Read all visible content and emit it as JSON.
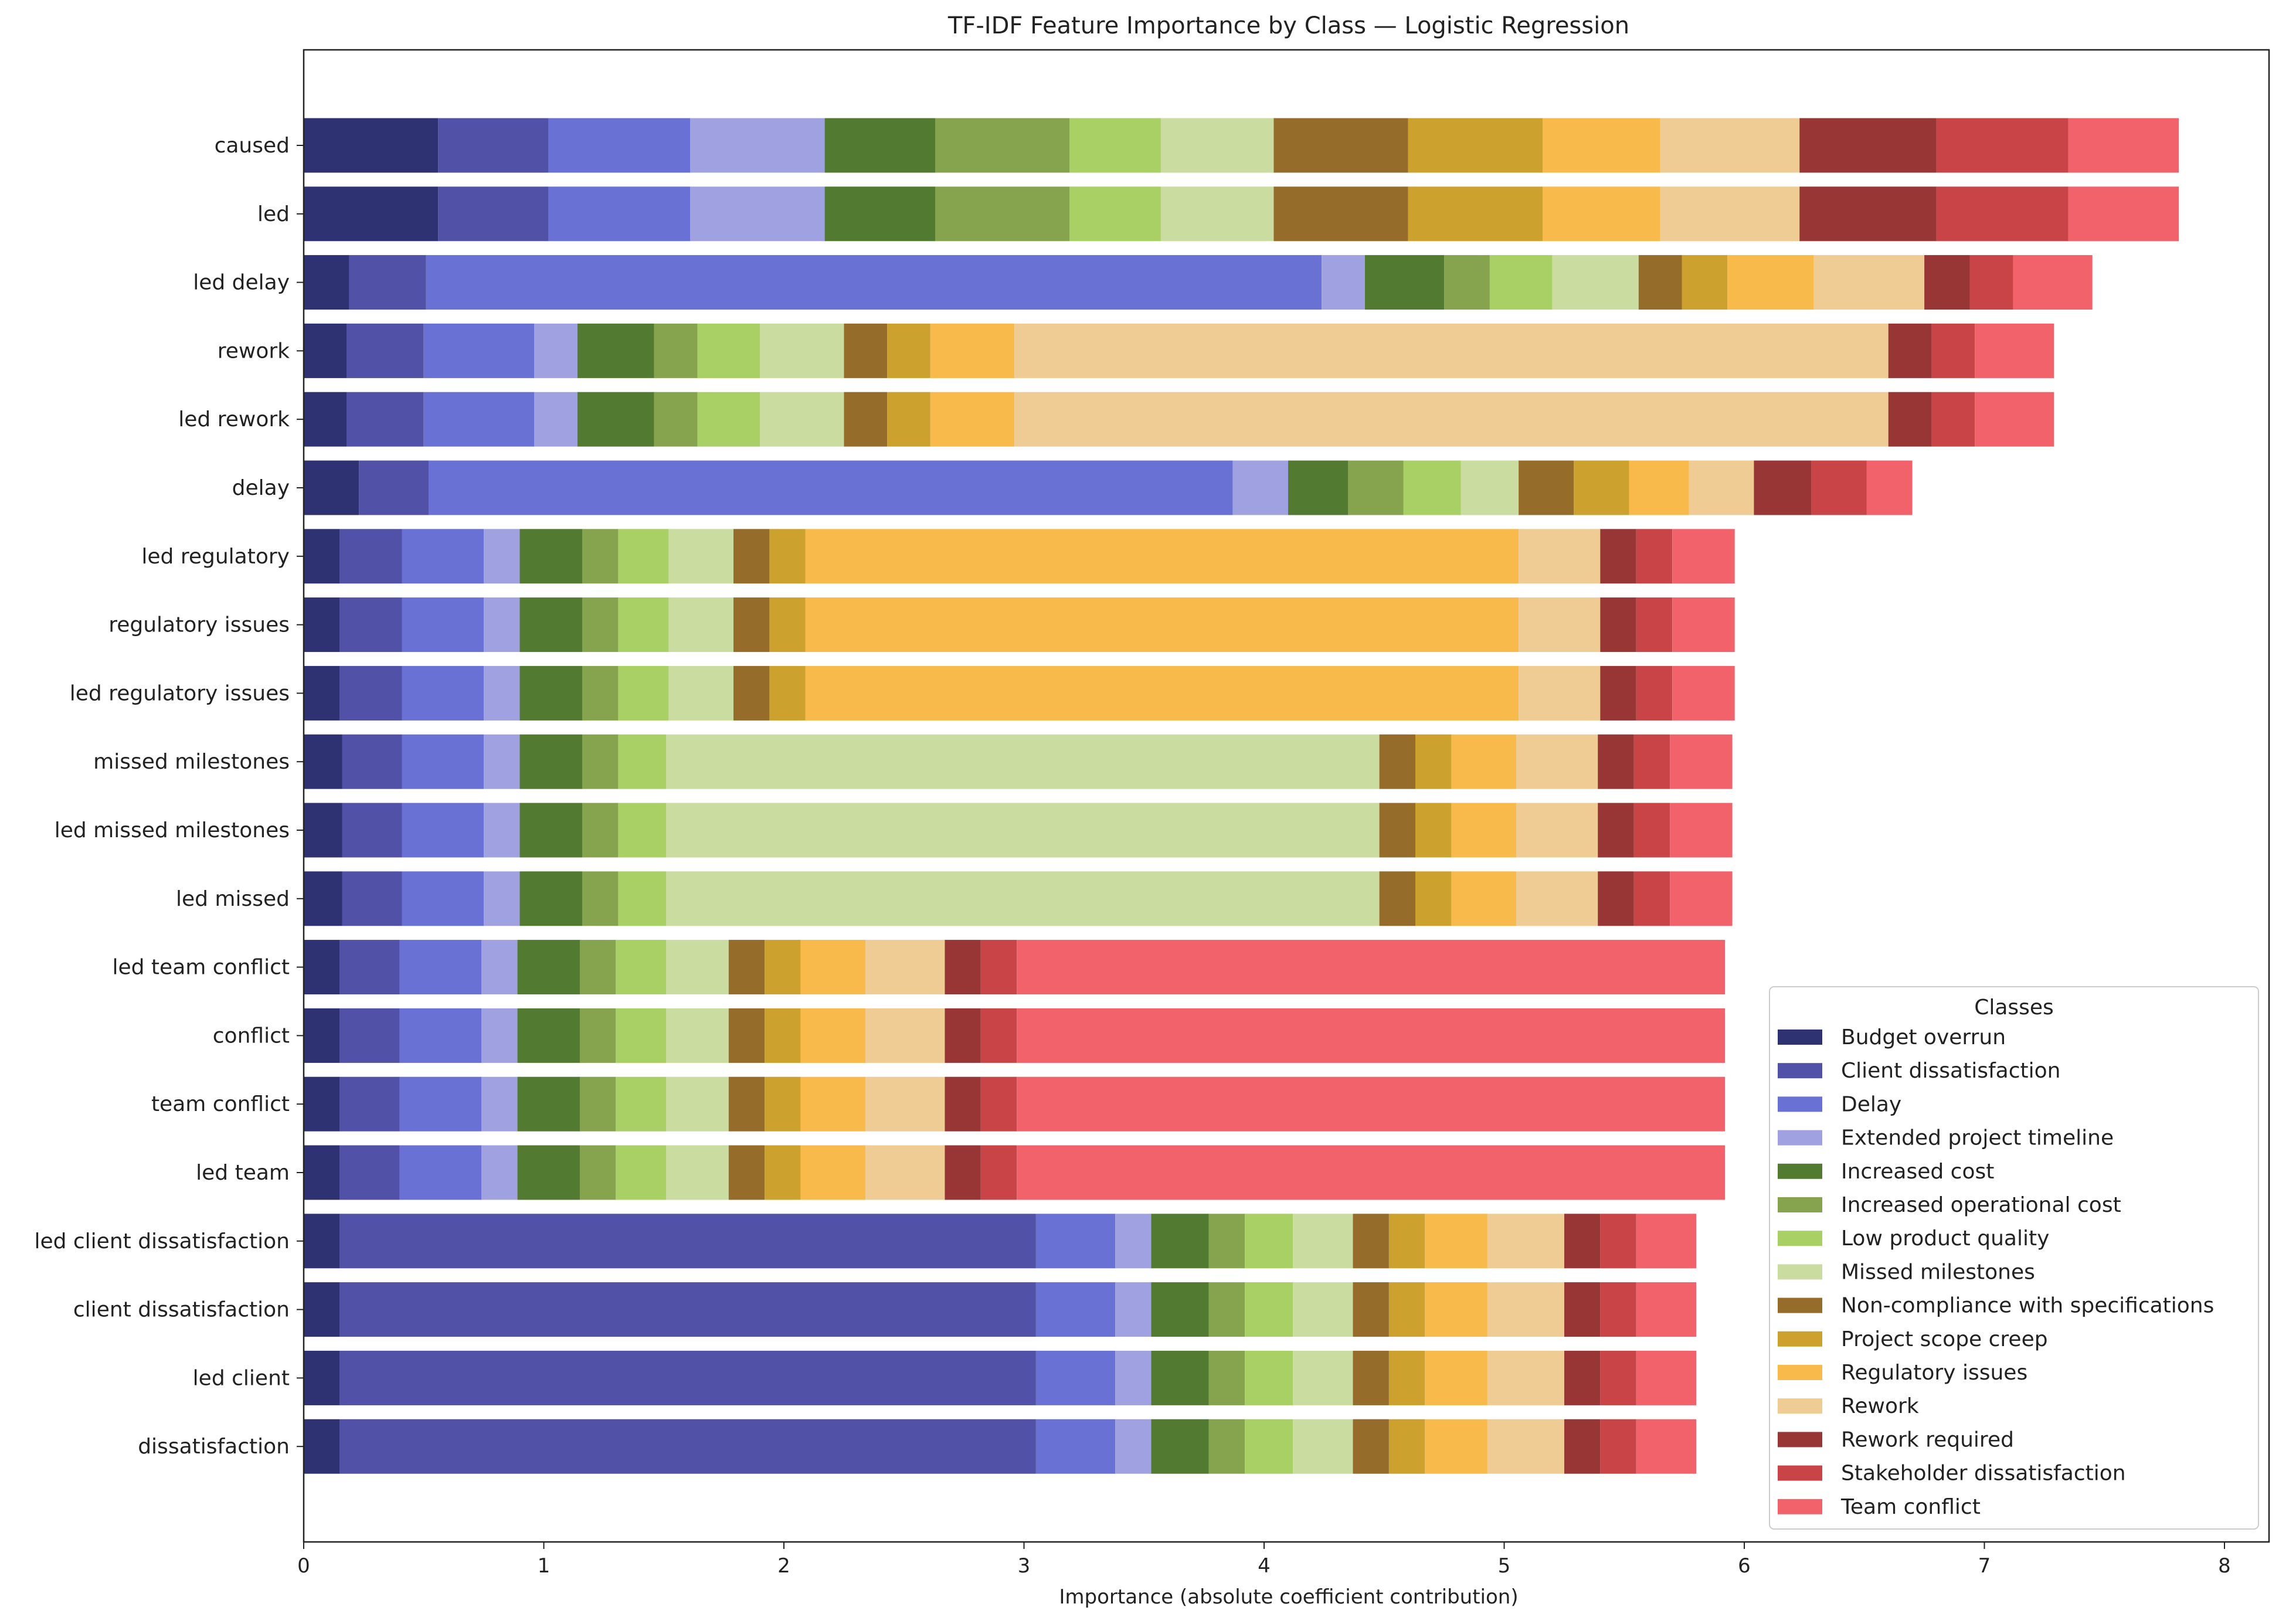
{
  "chart_data": {
    "type": "bar",
    "orientation": "horizontal",
    "stacked": true,
    "title": "TF-IDF Feature Importance by Class — Logistic Regression",
    "xlabel": "Importance (absolute coefficient contribution)",
    "ylabel": "",
    "xlim": [
      0,
      8.2
    ],
    "xticks": [
      0,
      1,
      2,
      3,
      4,
      5,
      6,
      7,
      8
    ],
    "grid": false,
    "legend": {
      "title": "Classes",
      "placement": "lower-right"
    },
    "categories": [
      "caused",
      "led",
      "led delay",
      "rework",
      "led rework",
      "delay",
      "led regulatory",
      "regulatory issues",
      "led regulatory issues",
      "missed milestones",
      "led missed milestones",
      "led missed",
      "led team conflict",
      "conflict",
      "team conflict",
      "led team",
      "led client dissatisfaction",
      "client dissatisfaction",
      "led client",
      "dissatisfaction"
    ],
    "series": [
      {
        "name": "Budget overrun",
        "color": "#2f3272",
        "values": [
          0.56,
          0.56,
          0.19,
          0.18,
          0.18,
          0.23,
          0.15,
          0.15,
          0.15,
          0.16,
          0.16,
          0.16,
          0.15,
          0.15,
          0.15,
          0.15,
          0.15,
          0.15,
          0.15,
          0.15
        ]
      },
      {
        "name": "Client dissatisfaction",
        "color": "#5051a7",
        "values": [
          0.46,
          0.46,
          0.32,
          0.32,
          0.32,
          0.29,
          0.26,
          0.26,
          0.26,
          0.25,
          0.25,
          0.25,
          0.25,
          0.25,
          0.25,
          0.25,
          2.9,
          2.9,
          2.9,
          2.9
        ]
      },
      {
        "name": "Delay",
        "color": "#6a71d4",
        "values": [
          0.59,
          0.59,
          3.73,
          0.46,
          0.46,
          3.35,
          0.34,
          0.34,
          0.34,
          0.34,
          0.34,
          0.34,
          0.34,
          0.34,
          0.34,
          0.34,
          0.33,
          0.33,
          0.33,
          0.33
        ]
      },
      {
        "name": "Extended project timeline",
        "color": "#9fa1e0",
        "values": [
          0.56,
          0.56,
          0.18,
          0.18,
          0.18,
          0.23,
          0.15,
          0.15,
          0.15,
          0.15,
          0.15,
          0.15,
          0.15,
          0.15,
          0.15,
          0.15,
          0.15,
          0.15,
          0.15,
          0.15
        ]
      },
      {
        "name": "Increased cost",
        "color": "#537a31",
        "values": [
          0.46,
          0.46,
          0.33,
          0.32,
          0.32,
          0.25,
          0.26,
          0.26,
          0.26,
          0.26,
          0.26,
          0.26,
          0.26,
          0.26,
          0.26,
          0.26,
          0.24,
          0.24,
          0.24,
          0.24
        ]
      },
      {
        "name": "Increased operational cost",
        "color": "#85a44d",
        "values": [
          0.56,
          0.56,
          0.19,
          0.18,
          0.18,
          0.23,
          0.15,
          0.15,
          0.15,
          0.15,
          0.15,
          0.15,
          0.15,
          0.15,
          0.15,
          0.15,
          0.15,
          0.15,
          0.15,
          0.15
        ]
      },
      {
        "name": "Low product quality",
        "color": "#a8d064",
        "values": [
          0.38,
          0.38,
          0.26,
          0.26,
          0.26,
          0.24,
          0.21,
          0.21,
          0.21,
          0.2,
          0.2,
          0.2,
          0.21,
          0.21,
          0.21,
          0.21,
          0.2,
          0.2,
          0.2,
          0.2
        ]
      },
      {
        "name": "Missed milestones",
        "color": "#cadc9f",
        "values": [
          0.47,
          0.47,
          0.36,
          0.35,
          0.35,
          0.24,
          0.27,
          0.27,
          0.27,
          2.97,
          2.97,
          2.97,
          0.26,
          0.26,
          0.26,
          0.26,
          0.25,
          0.25,
          0.25,
          0.25
        ]
      },
      {
        "name": "Non-compliance with specifications",
        "color": "#956c29",
        "values": [
          0.56,
          0.56,
          0.18,
          0.18,
          0.18,
          0.23,
          0.15,
          0.15,
          0.15,
          0.15,
          0.15,
          0.15,
          0.15,
          0.15,
          0.15,
          0.15,
          0.15,
          0.15,
          0.15,
          0.15
        ]
      },
      {
        "name": "Project scope creep",
        "color": "#cca12e",
        "values": [
          0.56,
          0.56,
          0.19,
          0.18,
          0.18,
          0.23,
          0.15,
          0.15,
          0.15,
          0.15,
          0.15,
          0.15,
          0.15,
          0.15,
          0.15,
          0.15,
          0.15,
          0.15,
          0.15,
          0.15
        ]
      },
      {
        "name": "Regulatory issues",
        "color": "#f7ba4b",
        "values": [
          0.49,
          0.49,
          0.36,
          0.35,
          0.35,
          0.25,
          2.97,
          2.97,
          2.97,
          0.27,
          0.27,
          0.27,
          0.27,
          0.27,
          0.27,
          0.27,
          0.26,
          0.26,
          0.26,
          0.26
        ]
      },
      {
        "name": "Rework",
        "color": "#f0cc95",
        "values": [
          0.58,
          0.58,
          0.46,
          3.64,
          3.64,
          0.27,
          0.34,
          0.34,
          0.34,
          0.34,
          0.34,
          0.34,
          0.33,
          0.33,
          0.33,
          0.33,
          0.32,
          0.32,
          0.32,
          0.32
        ]
      },
      {
        "name": "Rework required",
        "color": "#983535",
        "values": [
          0.57,
          0.57,
          0.19,
          0.18,
          0.18,
          0.24,
          0.15,
          0.15,
          0.15,
          0.15,
          0.15,
          0.15,
          0.15,
          0.15,
          0.15,
          0.15,
          0.15,
          0.15,
          0.15,
          0.15
        ]
      },
      {
        "name": "Stakeholder dissatisfaction",
        "color": "#c84447",
        "values": [
          0.55,
          0.55,
          0.18,
          0.18,
          0.18,
          0.23,
          0.15,
          0.15,
          0.15,
          0.15,
          0.15,
          0.15,
          0.15,
          0.15,
          0.15,
          0.15,
          0.15,
          0.15,
          0.15,
          0.15
        ]
      },
      {
        "name": "Team conflict",
        "color": "#f2626b",
        "values": [
          0.46,
          0.46,
          0.33,
          0.33,
          0.33,
          0.19,
          0.26,
          0.26,
          0.26,
          0.26,
          0.26,
          0.26,
          2.95,
          2.95,
          2.95,
          2.95,
          0.25,
          0.25,
          0.25,
          0.25
        ]
      }
    ]
  }
}
